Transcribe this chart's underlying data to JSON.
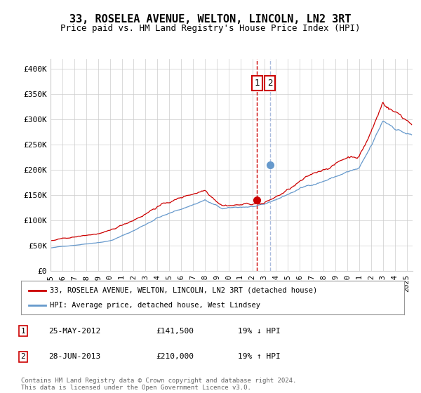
{
  "title": "33, ROSELEA AVENUE, WELTON, LINCOLN, LN2 3RT",
  "subtitle": "Price paid vs. HM Land Registry's House Price Index (HPI)",
  "ylabel_ticks": [
    "£0",
    "£50K",
    "£100K",
    "£150K",
    "£200K",
    "£250K",
    "£300K",
    "£350K",
    "£400K"
  ],
  "ytick_vals": [
    0,
    50000,
    100000,
    150000,
    200000,
    250000,
    300000,
    350000,
    400000
  ],
  "ylim": [
    0,
    420000
  ],
  "xlim_start": 1995.0,
  "xlim_end": 2025.5,
  "t1_x": 2012.38,
  "t1_y": 141500,
  "t2_x": 2013.5,
  "t2_y": 210000,
  "legend_line1": "33, ROSELEA AVENUE, WELTON, LINCOLN, LN2 3RT (detached house)",
  "legend_line2": "HPI: Average price, detached house, West Lindsey",
  "table_row1": [
    "1",
    "25-MAY-2012",
    "£141,500",
    "19% ↓ HPI"
  ],
  "table_row2": [
    "2",
    "28-JUN-2013",
    "£210,000",
    "19% ↑ HPI"
  ],
  "footer": "Contains HM Land Registry data © Crown copyright and database right 2024.\nThis data is licensed under the Open Government Licence v3.0.",
  "color_red": "#cc0000",
  "color_blue": "#6699cc",
  "color_vline2": "#aabbdd",
  "background_color": "#ffffff",
  "grid_color": "#cccccc"
}
